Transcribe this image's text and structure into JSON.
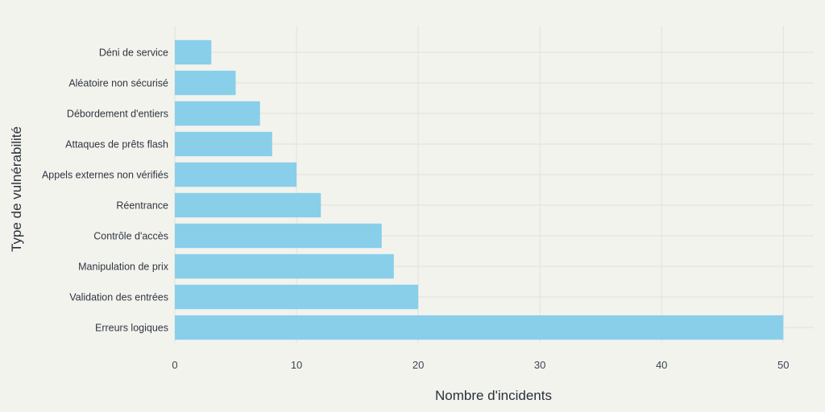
{
  "chart_data": {
    "type": "bar",
    "orientation": "horizontal",
    "title": "",
    "xlabel": "Nombre d'incidents",
    "ylabel": "Type de vulnérabilité",
    "categories": [
      "Erreurs logiques",
      "Validation des entrées",
      "Manipulation de prix",
      "Contrôle d'accès",
      "Réentrance",
      "Appels externes non vérifiés",
      "Attaques de prêts flash",
      "Débordement d'entiers",
      "Aléatoire non sécurisé",
      "Déni de service"
    ],
    "values": [
      50,
      20,
      18,
      17,
      12,
      10,
      8,
      7,
      5,
      3
    ],
    "xlim": [
      0,
      52.5
    ],
    "xticks": [
      0,
      10,
      20,
      30,
      40,
      50
    ],
    "grid": true,
    "legend": "none",
    "bar_color": "#89cfea",
    "background_color": "#f3f3ee"
  }
}
